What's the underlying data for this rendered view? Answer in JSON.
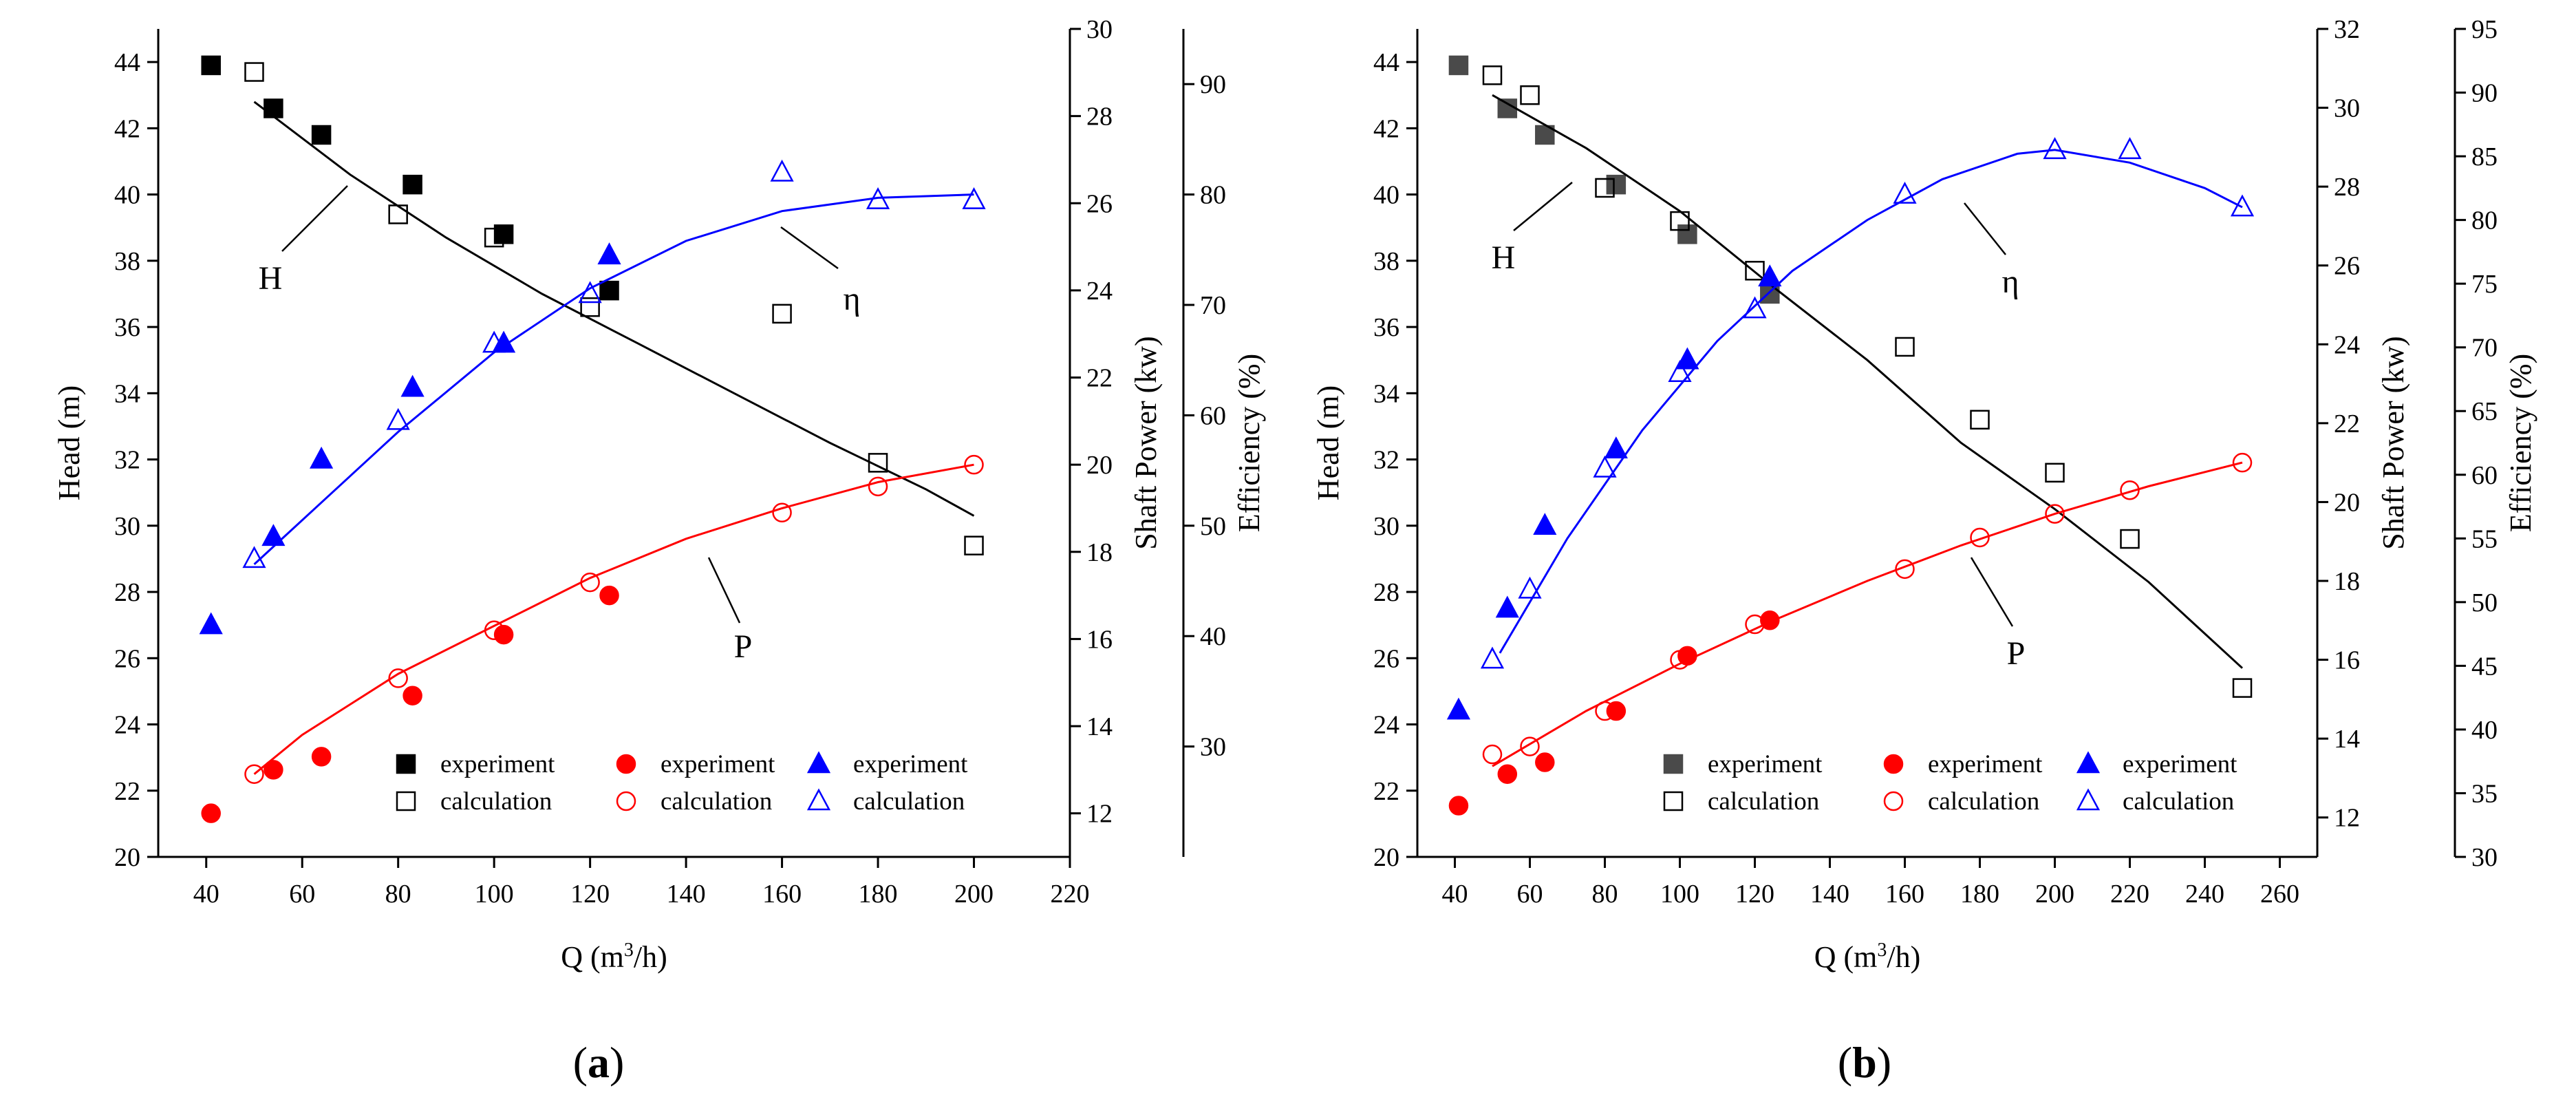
{
  "colors": {
    "head": "#000000",
    "head_exp_b": "#4a4a4a",
    "power": "#ff0000",
    "eff": "#0000ff"
  },
  "chart_data": [
    {
      "panel": "a",
      "type": "scatter",
      "label": "a",
      "xlabel": "Q (m",
      "xlabel_sup": "3",
      "xlabel_end": "/h)",
      "xlim": [
        30,
        220
      ],
      "xticks": [
        40,
        60,
        80,
        100,
        120,
        140,
        160,
        180,
        200,
        220
      ],
      "ylabel_head": "Head (m)",
      "ylim_head": [
        20,
        45
      ],
      "yticks_head": [
        20,
        22,
        24,
        26,
        28,
        30,
        32,
        34,
        36,
        38,
        40,
        42,
        44
      ],
      "ylabel_power": "Shaft Power (kw)",
      "ylim_power": [
        11,
        30
      ],
      "yticks_power": [
        12,
        14,
        16,
        18,
        20,
        22,
        24,
        26,
        28,
        30
      ],
      "ylabel_eff": "Efficiency (%)",
      "ylim_eff": [
        20,
        95
      ],
      "yticks_eff": [
        30,
        40,
        50,
        60,
        70,
        80,
        90
      ],
      "curve_labels": {
        "head": "H",
        "eff": "η",
        "power": "P"
      },
      "legend": [
        "experiment",
        "calculation"
      ],
      "series": [
        {
          "name": "Head experiment",
          "quantity": "head",
          "marker": "square-filled",
          "x": [
            41,
            54,
            64,
            83,
            102,
            124
          ],
          "y": [
            43.9,
            42.6,
            41.8,
            40.3,
            38.8,
            37.1
          ]
        },
        {
          "name": "Head calculation",
          "quantity": "head",
          "marker": "square-open",
          "x": [
            50,
            80,
            100,
            120,
            160,
            180,
            200
          ],
          "y": [
            43.7,
            39.4,
            38.7,
            36.6,
            36.4,
            31.9,
            29.4
          ]
        },
        {
          "name": "Head fit",
          "quantity": "head",
          "fit": true,
          "x": [
            50,
            70,
            90,
            110,
            130,
            150,
            170,
            190,
            200
          ],
          "y": [
            42.8,
            40.6,
            38.7,
            37.0,
            35.5,
            34.0,
            32.5,
            31.1,
            30.3
          ]
        },
        {
          "name": "Power experiment",
          "quantity": "power",
          "marker": "circle-filled",
          "x": [
            41,
            54,
            64,
            83,
            102,
            124
          ],
          "y": [
            12.0,
            13.0,
            13.3,
            14.7,
            16.1,
            17.0
          ]
        },
        {
          "name": "Power calculation",
          "quantity": "power",
          "marker": "circle-open",
          "x": [
            50,
            80,
            100,
            120,
            160,
            180,
            200
          ],
          "y": [
            12.9,
            15.1,
            16.2,
            17.3,
            18.9,
            19.5,
            20.0
          ]
        },
        {
          "name": "Power fit",
          "quantity": "power",
          "fit": true,
          "x": [
            50,
            60,
            80,
            100,
            120,
            140,
            160,
            180,
            200
          ],
          "y": [
            12.9,
            13.8,
            15.2,
            16.3,
            17.4,
            18.3,
            19.0,
            19.6,
            20.0
          ]
        },
        {
          "name": "Efficiency experiment",
          "quantity": "eff",
          "marker": "triangle-filled",
          "x": [
            41,
            54,
            64,
            83,
            102,
            124
          ],
          "y": [
            41.0,
            49.0,
            56.0,
            62.5,
            66.5,
            74.5
          ]
        },
        {
          "name": "Efficiency calculation",
          "quantity": "eff",
          "marker": "triangle-open",
          "x": [
            50,
            80,
            100,
            120,
            160,
            180,
            200
          ],
          "y": [
            47.0,
            59.5,
            66.5,
            71.0,
            82.0,
            79.5,
            79.5
          ]
        },
        {
          "name": "Efficiency fit",
          "quantity": "eff",
          "fit": true,
          "x": [
            50,
            65,
            80,
            100,
            120,
            140,
            160,
            180,
            200
          ],
          "y": [
            46.5,
            52.5,
            58.5,
            65.7,
            71.5,
            75.8,
            78.5,
            79.7,
            80.0
          ]
        }
      ]
    },
    {
      "panel": "b",
      "type": "scatter",
      "label": "b",
      "xlabel": "Q (m",
      "xlabel_sup": "3",
      "xlabel_end": "/h)",
      "xlim": [
        30,
        270
      ],
      "xticks": [
        40,
        60,
        80,
        100,
        120,
        140,
        160,
        180,
        200,
        220,
        240,
        260
      ],
      "ylabel_head": "Head (m)",
      "ylim_head": [
        20,
        45
      ],
      "yticks_head": [
        20,
        22,
        24,
        26,
        28,
        30,
        32,
        34,
        36,
        38,
        40,
        42,
        44
      ],
      "ylabel_power": "Shaft Power (kw)",
      "ylim_power": [
        11,
        32
      ],
      "yticks_power": [
        12,
        14,
        16,
        18,
        20,
        22,
        24,
        26,
        28,
        30,
        32
      ],
      "ylabel_eff": "Efficiency (%)",
      "ylim_eff": [
        30,
        95
      ],
      "yticks_eff": [
        30,
        35,
        40,
        45,
        50,
        55,
        60,
        65,
        70,
        75,
        80,
        85,
        90,
        95
      ],
      "curve_labels": {
        "head": "H",
        "eff": "η",
        "power": "P"
      },
      "legend": [
        "experiment",
        "calculation"
      ],
      "series": [
        {
          "name": "Head experiment",
          "quantity": "head",
          "marker": "square-filled",
          "x": [
            41,
            54,
            64,
            83,
            102,
            124
          ],
          "y": [
            43.9,
            42.6,
            41.8,
            40.3,
            38.8,
            37.0
          ]
        },
        {
          "name": "Head calculation",
          "quantity": "head",
          "marker": "square-open",
          "x": [
            50,
            60,
            80,
            100,
            120,
            160,
            180,
            200,
            220,
            250
          ],
          "y": [
            43.6,
            43.0,
            40.2,
            39.2,
            37.7,
            35.4,
            33.2,
            31.6,
            29.6,
            25.1
          ]
        },
        {
          "name": "Head fit",
          "quantity": "head",
          "fit": true,
          "x": [
            50,
            75,
            100,
            125,
            150,
            175,
            200,
            225,
            250
          ],
          "y": [
            43.0,
            41.4,
            39.5,
            37.2,
            35.0,
            32.5,
            30.5,
            28.3,
            25.7
          ]
        },
        {
          "name": "Power experiment",
          "quantity": "power",
          "marker": "circle-filled",
          "x": [
            41,
            54,
            64,
            83,
            102,
            124
          ],
          "y": [
            12.3,
            13.1,
            13.4,
            14.7,
            16.1,
            17.0
          ]
        },
        {
          "name": "Power calculation",
          "quantity": "power",
          "marker": "circle-open",
          "x": [
            50,
            60,
            80,
            100,
            120,
            160,
            180,
            200,
            220,
            250
          ],
          "y": [
            13.6,
            13.8,
            14.7,
            16.0,
            16.9,
            18.3,
            19.1,
            19.7,
            20.3,
            21.0
          ]
        },
        {
          "name": "Power fit",
          "quantity": "power",
          "fit": true,
          "x": [
            50,
            75,
            100,
            125,
            150,
            175,
            200,
            225,
            250
          ],
          "y": [
            13.3,
            14.7,
            15.9,
            17.0,
            18.0,
            18.9,
            19.7,
            20.4,
            21.0
          ]
        },
        {
          "name": "Efficiency experiment",
          "quantity": "eff",
          "marker": "triangle-filled",
          "x": [
            41,
            54,
            64,
            83,
            102,
            124
          ],
          "y": [
            41.5,
            49.5,
            56.0,
            62.0,
            69.0,
            75.5
          ]
        },
        {
          "name": "Efficiency calculation",
          "quantity": "eff",
          "marker": "triangle-open",
          "x": [
            50,
            60,
            80,
            100,
            120,
            160,
            200,
            220,
            250
          ],
          "y": [
            45.5,
            51.0,
            60.5,
            68.0,
            73.0,
            82.0,
            85.5,
            85.5,
            81.0
          ]
        },
        {
          "name": "Efficiency fit",
          "quantity": "eff",
          "fit": true,
          "x": [
            52,
            70,
            90,
            110,
            130,
            150,
            170,
            190,
            200,
            220,
            240,
            250
          ],
          "y": [
            46.0,
            55.0,
            63.5,
            70.5,
            76.0,
            80.0,
            83.2,
            85.2,
            85.5,
            84.5,
            82.5,
            81.0
          ]
        }
      ]
    }
  ]
}
